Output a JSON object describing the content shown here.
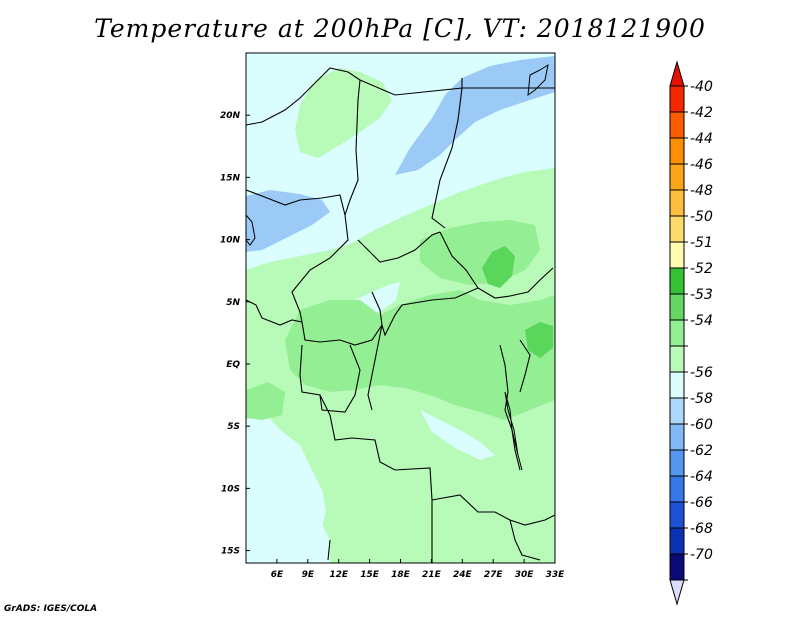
{
  "title": "Temperature at 200hPa [C], VT: 2018121900",
  "credit": "GrADS: IGES/COLA",
  "map": {
    "lon_range": [
      3,
      33
    ],
    "lat_range": [
      -16,
      25
    ],
    "lat_ticks": [
      {
        "value": 20,
        "label": "20N"
      },
      {
        "value": 15,
        "label": "15N"
      },
      {
        "value": 10,
        "label": "10N"
      },
      {
        "value": 5,
        "label": "5N"
      },
      {
        "value": 0,
        "label": "EQ"
      },
      {
        "value": -5,
        "label": "5S"
      },
      {
        "value": -10,
        "label": "10S"
      },
      {
        "value": -15,
        "label": "15S"
      }
    ],
    "lon_ticks": [
      {
        "value": 6,
        "label": "6E"
      },
      {
        "value": 9,
        "label": "9E"
      },
      {
        "value": 12,
        "label": "12E"
      },
      {
        "value": 15,
        "label": "15E"
      },
      {
        "value": 18,
        "label": "18E"
      },
      {
        "value": 21,
        "label": "21E"
      },
      {
        "value": 24,
        "label": "24E"
      },
      {
        "value": 27,
        "label": "27E"
      },
      {
        "value": 30,
        "label": "30E"
      },
      {
        "value": 33,
        "label": "33E"
      }
    ]
  },
  "colorbar": {
    "top_arrow_color": "#e81000",
    "bottom_arrow_color": "#dcdcff",
    "bins": [
      {
        "color": "#f62800",
        "label": "-40"
      },
      {
        "color": "#fb5c00",
        "label": "-42"
      },
      {
        "color": "#fc8e00",
        "label": "-44"
      },
      {
        "color": "#fca41a",
        "label": "-46"
      },
      {
        "color": "#fbbe3d",
        "label": "-48"
      },
      {
        "color": "#fddc6c",
        "label": "-50"
      },
      {
        "color": "#fefdb2",
        "label": "-51"
      },
      {
        "color": "#34c234",
        "label": "-52"
      },
      {
        "color": "#65d765",
        "label": "-53"
      },
      {
        "color": "#94ee94",
        "label": "-54"
      },
      {
        "color": "#b8fab8",
        "label": ""
      },
      {
        "color": "#dafefe",
        "label": "-56"
      },
      {
        "color": "#acd8fc",
        "label": "-58"
      },
      {
        "color": "#82b8f6",
        "label": "-60"
      },
      {
        "color": "#5496f0",
        "label": "-62"
      },
      {
        "color": "#3678e8",
        "label": "-64"
      },
      {
        "color": "#1e52d6",
        "label": "-66"
      },
      {
        "color": "#0c32b4",
        "label": "-68"
      },
      {
        "color": "#0a0a78",
        "label": "-70"
      }
    ]
  },
  "field_colors": {
    "coldest": "#9ccaf6",
    "cold": "#dafefe",
    "mid": "#b8fab8",
    "warm": "#94ee94",
    "warmest": "#5ad65a"
  }
}
